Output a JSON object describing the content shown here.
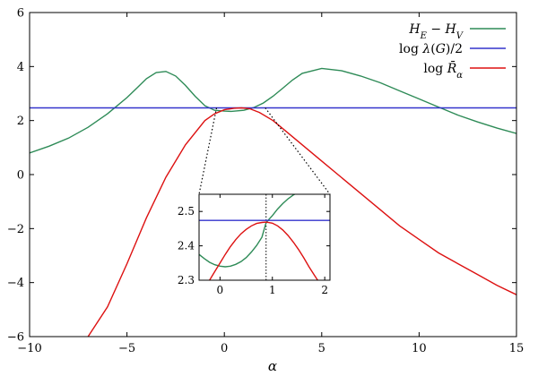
{
  "chart_data": {
    "type": "line",
    "xlabel": "α",
    "ylabel": "",
    "xlim": [
      -10,
      15
    ],
    "ylim": [
      -6,
      6
    ],
    "xticks": [
      -10,
      -5,
      0,
      5,
      10,
      15
    ],
    "yticks": [
      -6,
      -4,
      -2,
      0,
      2,
      4,
      6
    ],
    "xtick_labels": [
      "−10",
      "−5",
      "0",
      "5",
      "10",
      "15"
    ],
    "ytick_labels": [
      "−6",
      "−4",
      "−2",
      "0",
      "2",
      "4",
      "6"
    ],
    "legend_position": "top-right",
    "grid": false,
    "series": [
      {
        "name": "H_E − H_V",
        "legend_html": "<tspan>H</tspan><tspan baseline-shift=\"sub\" font-size=\"10\">E</tspan><tspan font-style=\"normal\"> − </tspan><tspan>H</tspan><tspan baseline-shift=\"sub\" font-size=\"10\">V</tspan>",
        "color": "#2e8b57",
        "x": [
          -10,
          -9,
          -8,
          -7,
          -6,
          -5,
          -4.5,
          -4,
          -3.5,
          -3,
          -2.5,
          -2,
          -1.5,
          -1,
          -0.5,
          0,
          0.35,
          1,
          1.5,
          2,
          2.5,
          3,
          3.5,
          4,
          5,
          6,
          7,
          8,
          9,
          10,
          11,
          12,
          13,
          14,
          15
        ],
        "y": [
          0.8,
          1.05,
          1.35,
          1.75,
          2.25,
          2.85,
          3.2,
          3.55,
          3.78,
          3.82,
          3.65,
          3.3,
          2.9,
          2.55,
          2.38,
          2.35,
          2.34,
          2.38,
          2.48,
          2.65,
          2.9,
          3.2,
          3.5,
          3.75,
          3.93,
          3.85,
          3.65,
          3.4,
          3.1,
          2.8,
          2.5,
          2.2,
          1.95,
          1.72,
          1.52
        ]
      },
      {
        "name": "log λ(G)/2",
        "legend_html": "<tspan font-style=\"normal\">log </tspan><tspan>λ</tspan><tspan font-style=\"normal\">(</tspan><tspan>G</tspan><tspan font-style=\"normal\">)/2</tspan>",
        "color": "#3333cc",
        "x": [
          -10,
          15
        ],
        "y": [
          2.47,
          2.47
        ]
      },
      {
        "name": "log R̄_α",
        "legend_html": "<tspan font-style=\"normal\">log </tspan><tspan>R̄</tspan><tspan baseline-shift=\"sub\" font-size=\"10\">α</tspan>",
        "color": "#dd1111",
        "x": [
          -7,
          -6,
          -5,
          -4,
          -3,
          -2,
          -1,
          -0.5,
          0,
          0.5,
          0.88,
          1.3,
          1.8,
          2.5,
          3,
          4,
          5,
          6,
          7,
          8,
          9,
          10,
          11,
          12,
          13,
          14,
          15
        ],
        "y": [
          -6,
          -4.9,
          -3.3,
          -1.6,
          -0.1,
          1.1,
          2.0,
          2.25,
          2.4,
          2.455,
          2.468,
          2.44,
          2.3,
          2.0,
          1.7,
          1.1,
          0.5,
          -0.1,
          -0.7,
          -1.3,
          -1.9,
          -2.4,
          -2.9,
          -3.3,
          -3.7,
          -4.1,
          -4.45
        ]
      }
    ],
    "inset": {
      "xlim": [
        -0.4,
        2.1
      ],
      "ylim": [
        2.3,
        2.55
      ],
      "xticks": [
        0,
        1,
        2
      ],
      "yticks": [
        2.3,
        2.4,
        2.5
      ],
      "xtick_labels": [
        "0",
        "1",
        "2"
      ],
      "ytick_labels": [
        "2.3",
        "2.4",
        "2.5"
      ],
      "marker_x": 0.88,
      "zoom_region_x": [
        -0.4,
        2.1
      ],
      "series": [
        {
          "color": "#2e8b57",
          "x": [
            -0.4,
            -0.3,
            -0.2,
            -0.1,
            0,
            0.1,
            0.2,
            0.3,
            0.4,
            0.5,
            0.6,
            0.7,
            0.8,
            0.88,
            1.0,
            1.1,
            1.2,
            1.3,
            1.4,
            1.5,
            1.6
          ],
          "y": [
            2.375,
            2.363,
            2.352,
            2.345,
            2.341,
            2.339,
            2.341,
            2.346,
            2.354,
            2.366,
            2.382,
            2.401,
            2.425,
            2.468,
            2.488,
            2.507,
            2.523,
            2.537,
            2.548,
            2.556,
            2.562
          ]
        },
        {
          "color": "#3333cc",
          "x": [
            -0.4,
            2.1
          ],
          "y": [
            2.474,
            2.474
          ]
        },
        {
          "color": "#dd1111",
          "x": [
            -0.2,
            -0.1,
            0,
            0.1,
            0.2,
            0.3,
            0.4,
            0.5,
            0.6,
            0.7,
            0.8,
            0.88,
            1.0,
            1.1,
            1.2,
            1.3,
            1.4,
            1.5,
            1.6,
            1.7,
            1.8,
            1.9,
            2.0
          ],
          "y": [
            2.3,
            2.325,
            2.35,
            2.375,
            2.398,
            2.418,
            2.435,
            2.448,
            2.458,
            2.465,
            2.468,
            2.469,
            2.466,
            2.458,
            2.446,
            2.43,
            2.411,
            2.389,
            2.365,
            2.339,
            2.315,
            2.292,
            2.3
          ]
        }
      ]
    }
  }
}
